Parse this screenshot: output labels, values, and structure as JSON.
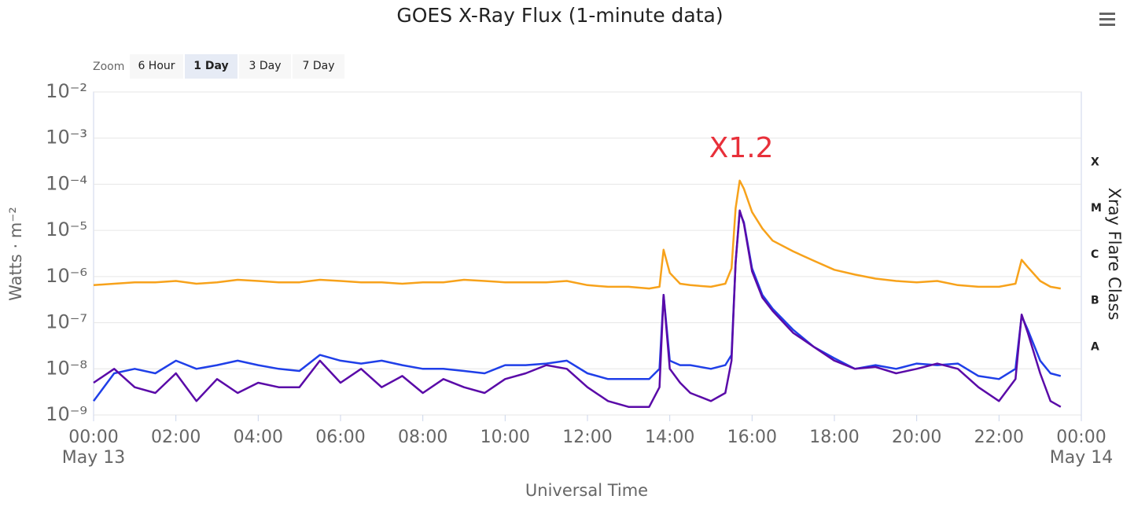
{
  "chart_data": {
    "type": "line",
    "title": "GOES X-Ray Flux (1-minute data)",
    "x_label": "Universal Time",
    "y_label": "Watts · m⁻²",
    "y2_label": "Xray Flare Class",
    "log_scale": true,
    "grid": true,
    "range_selector": {
      "label": "Zoom",
      "buttons": [
        "6 Hour",
        "1 Day",
        "3 Day",
        "7 Day"
      ],
      "selected": 1
    },
    "annotation": {
      "text": "X1.2",
      "color": "#e8303a"
    },
    "xlim": [
      0,
      24
    ],
    "xticks": [
      {
        "value": 0,
        "label": "00:00"
      },
      {
        "value": 2,
        "label": "02:00"
      },
      {
        "value": 4,
        "label": "04:00"
      },
      {
        "value": 6,
        "label": "06:00"
      },
      {
        "value": 8,
        "label": "08:00"
      },
      {
        "value": 10,
        "label": "10:00"
      },
      {
        "value": 12,
        "label": "12:00"
      },
      {
        "value": 14,
        "label": "14:00"
      },
      {
        "value": 16,
        "label": "16:00"
      },
      {
        "value": 18,
        "label": "18:00"
      },
      {
        "value": 20,
        "label": "20:00"
      },
      {
        "value": 22,
        "label": "22:00"
      },
      {
        "value": 24,
        "label": "00:00"
      }
    ],
    "x_date_labels": [
      {
        "value": 0,
        "label": "May 13"
      },
      {
        "value": 24,
        "label": "May 14"
      }
    ],
    "ylim": [
      1e-09,
      0.01
    ],
    "yticks": [
      {
        "value": 1e-09,
        "label": "10⁻⁹"
      },
      {
        "value": 1e-08,
        "label": "10⁻⁸"
      },
      {
        "value": 1e-07,
        "label": "10⁻⁷"
      },
      {
        "value": 1e-06,
        "label": "10⁻⁶"
      },
      {
        "value": 1e-05,
        "label": "10⁻⁵"
      },
      {
        "value": 0.0001,
        "label": "10⁻⁴"
      },
      {
        "value": 0.001,
        "label": "10⁻³"
      },
      {
        "value": 0.01,
        "label": "10⁻²"
      }
    ],
    "y2lim": [
      1e-09,
      0.01
    ],
    "y2ticks": [
      {
        "value": 3e-08,
        "label": "A"
      },
      {
        "value": 3e-07,
        "label": "B"
      },
      {
        "value": 3e-06,
        "label": "C"
      },
      {
        "value": 3e-05,
        "label": "M"
      },
      {
        "value": 0.0003,
        "label": "X"
      }
    ],
    "x": [
      0,
      0.5,
      1,
      1.5,
      2,
      2.5,
      3,
      3.5,
      4,
      4.5,
      5,
      5.5,
      6,
      6.5,
      7,
      7.5,
      8,
      8.5,
      9,
      9.5,
      10,
      10.5,
      11,
      11.5,
      12,
      12.5,
      13,
      13.5,
      13.75,
      13.85,
      14,
      14.25,
      14.5,
      15,
      15.35,
      15.5,
      15.6,
      15.7,
      15.8,
      16,
      16.25,
      16.5,
      17,
      17.5,
      18,
      18.5,
      19,
      19.5,
      20,
      20.5,
      21,
      21.5,
      22,
      22.4,
      22.55,
      22.7,
      23,
      23.25,
      23.5
    ],
    "series": [
      {
        "color": "#f7a21b",
        "values": [
          6.5e-07,
          7e-07,
          7.5e-07,
          7.5e-07,
          8e-07,
          7e-07,
          7.5e-07,
          8.5e-07,
          8e-07,
          7.5e-07,
          7.5e-07,
          8.5e-07,
          8e-07,
          7.5e-07,
          7.5e-07,
          7e-07,
          7.5e-07,
          7.5e-07,
          8.5e-07,
          8e-07,
          7.5e-07,
          7.5e-07,
          7.5e-07,
          8e-07,
          6.5e-07,
          6e-07,
          6e-07,
          5.5e-07,
          6e-07,
          3.8e-06,
          1.2e-06,
          7e-07,
          6.5e-07,
          6e-07,
          7e-07,
          1.5e-06,
          3e-05,
          0.00012,
          8e-05,
          2.5e-05,
          1.1e-05,
          6e-06,
          3.5e-06,
          2.2e-06,
          1.4e-06,
          1.1e-06,
          9e-07,
          8e-07,
          7.5e-07,
          8e-07,
          6.5e-07,
          6e-07,
          6e-07,
          7e-07,
          2.3e-06,
          1.6e-06,
          8e-07,
          6e-07,
          5.5e-07
        ]
      },
      {
        "color": "#1f3fe8",
        "values": [
          2e-09,
          8e-09,
          1e-08,
          8e-09,
          1.5e-08,
          1e-08,
          1.2e-08,
          1.5e-08,
          1.2e-08,
          1e-08,
          9e-09,
          2e-08,
          1.5e-08,
          1.3e-08,
          1.5e-08,
          1.2e-08,
          1e-08,
          1e-08,
          9e-09,
          8e-09,
          1.2e-08,
          1.2e-08,
          1.3e-08,
          1.5e-08,
          8e-09,
          6e-09,
          6e-09,
          6e-09,
          1e-08,
          4e-07,
          1.5e-08,
          1.2e-08,
          1.2e-08,
          1e-08,
          1.2e-08,
          2e-08,
          2e-06,
          2.5e-05,
          1.5e-05,
          1.5e-06,
          4e-07,
          2e-07,
          7e-08,
          3e-08,
          1.7e-08,
          1e-08,
          1.2e-08,
          1e-08,
          1.3e-08,
          1.2e-08,
          1.3e-08,
          7e-09,
          6e-09,
          1e-08,
          1.4e-07,
          7e-08,
          1.5e-08,
          8e-09,
          7e-09
        ]
      },
      {
        "color": "#5a0aa8",
        "values": [
          5e-09,
          1e-08,
          4e-09,
          3e-09,
          8e-09,
          2e-09,
          6e-09,
          3e-09,
          5e-09,
          4e-09,
          4e-09,
          1.5e-08,
          5e-09,
          1e-08,
          4e-09,
          7e-09,
          3e-09,
          6e-09,
          4e-09,
          3e-09,
          6e-09,
          8e-09,
          1.2e-08,
          1e-08,
          4e-09,
          2e-09,
          1.5e-09,
          1.5e-09,
          4e-09,
          4e-07,
          1e-08,
          5e-09,
          3e-09,
          2e-09,
          3e-09,
          1.5e-08,
          2e-06,
          2.7e-05,
          1.4e-05,
          1.3e-06,
          3.5e-07,
          1.8e-07,
          6e-08,
          3e-08,
          1.5e-08,
          1e-08,
          1.1e-08,
          8e-09,
          1e-08,
          1.3e-08,
          1e-08,
          4e-09,
          2e-09,
          6e-09,
          1.5e-07,
          6e-08,
          8e-09,
          2e-09,
          1.5e-09
        ]
      }
    ]
  }
}
